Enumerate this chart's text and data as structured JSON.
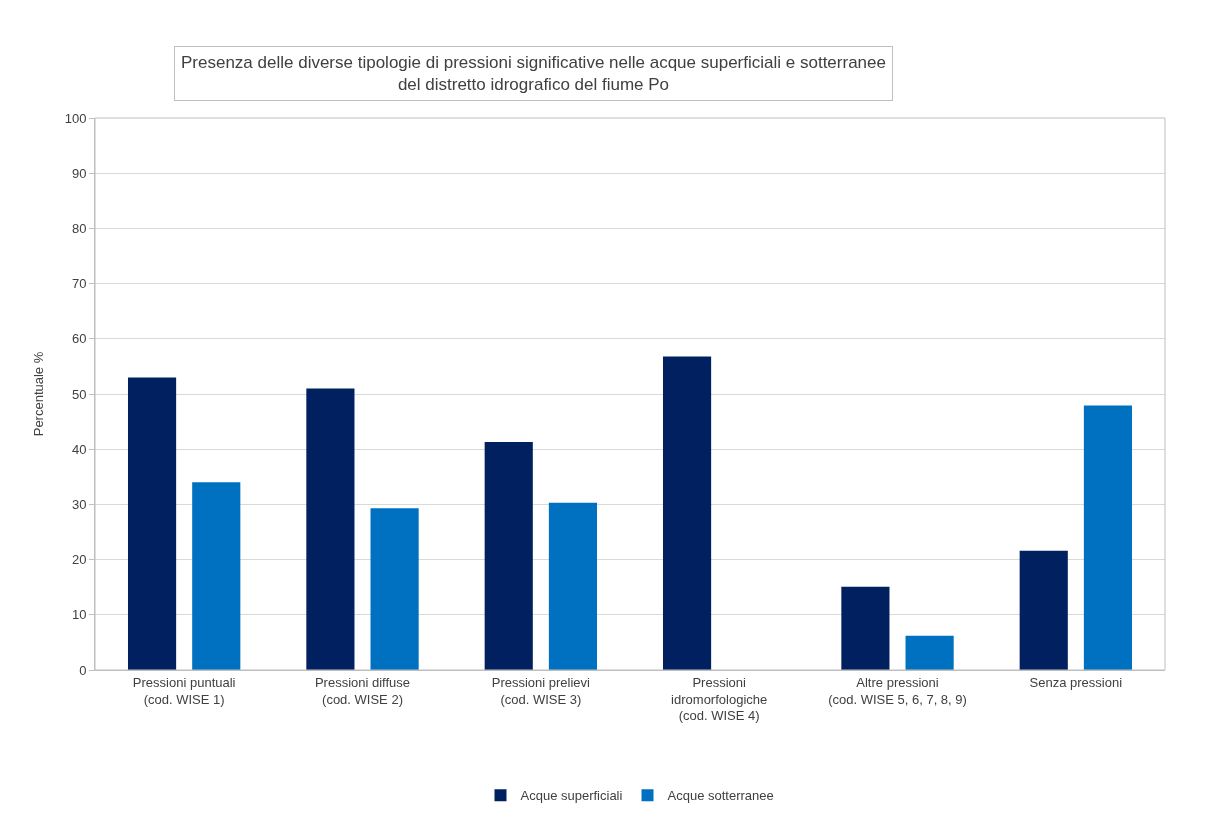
{
  "chart_data": {
    "type": "bar",
    "title": "Presenza delle diverse tipologie di pressioni significative nelle acque superficiali e sotterranee\ndel distretto idrografico del fiume Po",
    "ylabel": "Percentuale %",
    "categories": [
      "Pressioni puntuali\n(cod. WISE 1)",
      "Pressioni diffuse\n(cod. WISE 2)",
      "Pressioni prelievi\n(cod. WISE 3)",
      "Pressioni\nidromorfologiche\n(cod. WISE 4)",
      "Altre pressioni\n(cod. WISE 5, 6, 7, 8, 9)",
      "Senza pressioni"
    ],
    "series": [
      {
        "name": "Acque superficiali",
        "color": "#002060",
        "values": [
          53,
          51,
          41.3,
          56.8,
          15.1,
          21.6
        ]
      },
      {
        "name": "Acque sotterranee",
        "color": "#0070c0",
        "values": [
          34,
          29.3,
          30.3,
          null,
          6.2,
          47.9
        ]
      }
    ],
    "ylim": [
      0,
      100
    ],
    "yticks": [
      0,
      10,
      20,
      30,
      40,
      50,
      60,
      70,
      80,
      90,
      100
    ],
    "grid": "y",
    "legend": "bottom"
  }
}
